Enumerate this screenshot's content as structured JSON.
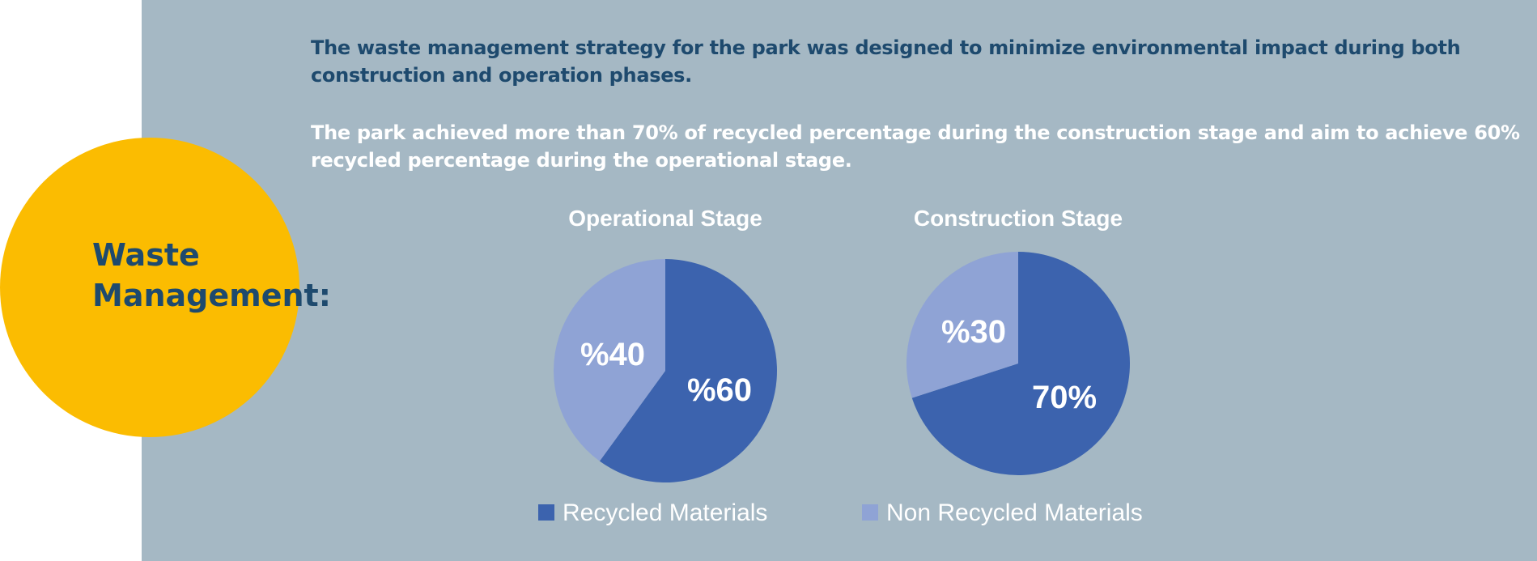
{
  "heading": {
    "line1": "Waste",
    "line2": "Management:"
  },
  "intro": "The waste management strategy for the park was designed to minimize environmental impact during both construction and operation phases.",
  "result": "The park achieved more than 70% of recycled percentage during the construction stage and aim to achieve 60% recycled percentage during the operational stage.",
  "colors": {
    "panel": "#a5b8c4",
    "circle": "#fbbc01",
    "heading": "#1e4a6e",
    "recycled": "#3c63ae",
    "non_recycled": "#8fa3d5"
  },
  "chart_data": [
    {
      "type": "pie",
      "title": "Operational Stage",
      "categories": [
        "Recycled Materials",
        "Non Recycled Materials"
      ],
      "values": [
        60,
        40
      ],
      "labels": [
        "%60",
        "%40"
      ]
    },
    {
      "type": "pie",
      "title": "Construction Stage",
      "categories": [
        "Recycled Materials",
        "Non Recycled Materials"
      ],
      "values": [
        70,
        30
      ],
      "labels": [
        "70%",
        "%30"
      ]
    }
  ],
  "legend": [
    {
      "label": "Recycled Materials",
      "color": "#3c63ae"
    },
    {
      "label": "Non Recycled Materials",
      "color": "#8fa3d5"
    }
  ]
}
